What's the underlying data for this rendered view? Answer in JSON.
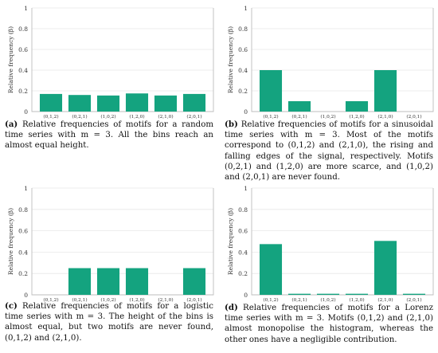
{
  "figure": {
    "accent": "#14a37f",
    "axis_color": "#bdbdbd",
    "grid_color": "#e8e8e8"
  },
  "chart_data": [
    {
      "id": "a",
      "type": "bar",
      "ylabel": "Relative frequency (β)",
      "ylim": [
        0,
        1
      ],
      "yticks": [
        "0",
        "0.2",
        "0.4",
        "0.6",
        "0.8",
        "1"
      ],
      "grid": true,
      "categories": [
        "(0,1,2)",
        "(0,2,1)",
        "(1,0,2)",
        "(1,2,0)",
        "(2,1,0)",
        "(2,0,1)"
      ],
      "values": [
        0.17,
        0.16,
        0.155,
        0.175,
        0.155,
        0.17
      ],
      "caption_tag": "(a)",
      "caption": "Relative frequencies of motifs for a random time series with m = 3. All the bins reach an almost equal height."
    },
    {
      "id": "b",
      "type": "bar",
      "ylabel": "Relative frequency (β)",
      "ylim": [
        0,
        1
      ],
      "yticks": [
        "0",
        "0.2",
        "0.4",
        "0.6",
        "0.8",
        "1"
      ],
      "grid": true,
      "categories": [
        "(0,1,2)",
        "(0,2,1)",
        "(1,0,2)",
        "(1,2,0)",
        "(2,1,0)",
        "(2,0,1)"
      ],
      "values": [
        0.4,
        0.1,
        0,
        0.1,
        0.4,
        0
      ],
      "caption_tag": "(b)",
      "caption": "Relative frequencies of motifs for a sinusoidal time series with m = 3. Most of the motifs correspond to (0,1,2) and (2,1,0), the rising and falling edges of the signal, respectively. Motifs (0,2,1) and (1,2,0) are more scarce, and (1,0,2) and (2,0,1) are never found."
    },
    {
      "id": "c",
      "type": "bar",
      "ylabel": "Relative frequency (β)",
      "ylim": [
        0,
        1
      ],
      "yticks": [
        "0",
        "0.2",
        "0.4",
        "0.6",
        "0.8",
        "1"
      ],
      "grid": true,
      "categories": [
        "(0,1,2)",
        "(0,2,1)",
        "(1,0,2)",
        "(1,2,0)",
        "(2,1,0)",
        "(2,0,1)"
      ],
      "values": [
        0,
        0.25,
        0.25,
        0.25,
        0,
        0.25
      ],
      "caption_tag": "(c)",
      "caption": "Relative frequencies of motifs for a logistic time series with m = 3. The height of the bins is almost equal, but two motifs are never found, (0,1,2) and (2,1,0)."
    },
    {
      "id": "d",
      "type": "bar",
      "ylabel": "Relative frequency (β)",
      "ylim": [
        0,
        1
      ],
      "yticks": [
        "0",
        "0.2",
        "0.4",
        "0.6",
        "0.8",
        "1"
      ],
      "grid": true,
      "categories": [
        "(0,1,2)",
        "(0,2,1)",
        "(1,0,2)",
        "(1,2,0)",
        "(2,1,0)",
        "(2,0,1)"
      ],
      "values": [
        0.475,
        0.01,
        0.01,
        0.01,
        0.505,
        0.01
      ],
      "caption_tag": "(d)",
      "caption": "Relative frequencies of motifs for a Lorenz time series with m = 3. Motifs (0,1,2) and (2,1,0) almost monopolise the histogram, whereas the other ones have a negligible contribution."
    }
  ]
}
